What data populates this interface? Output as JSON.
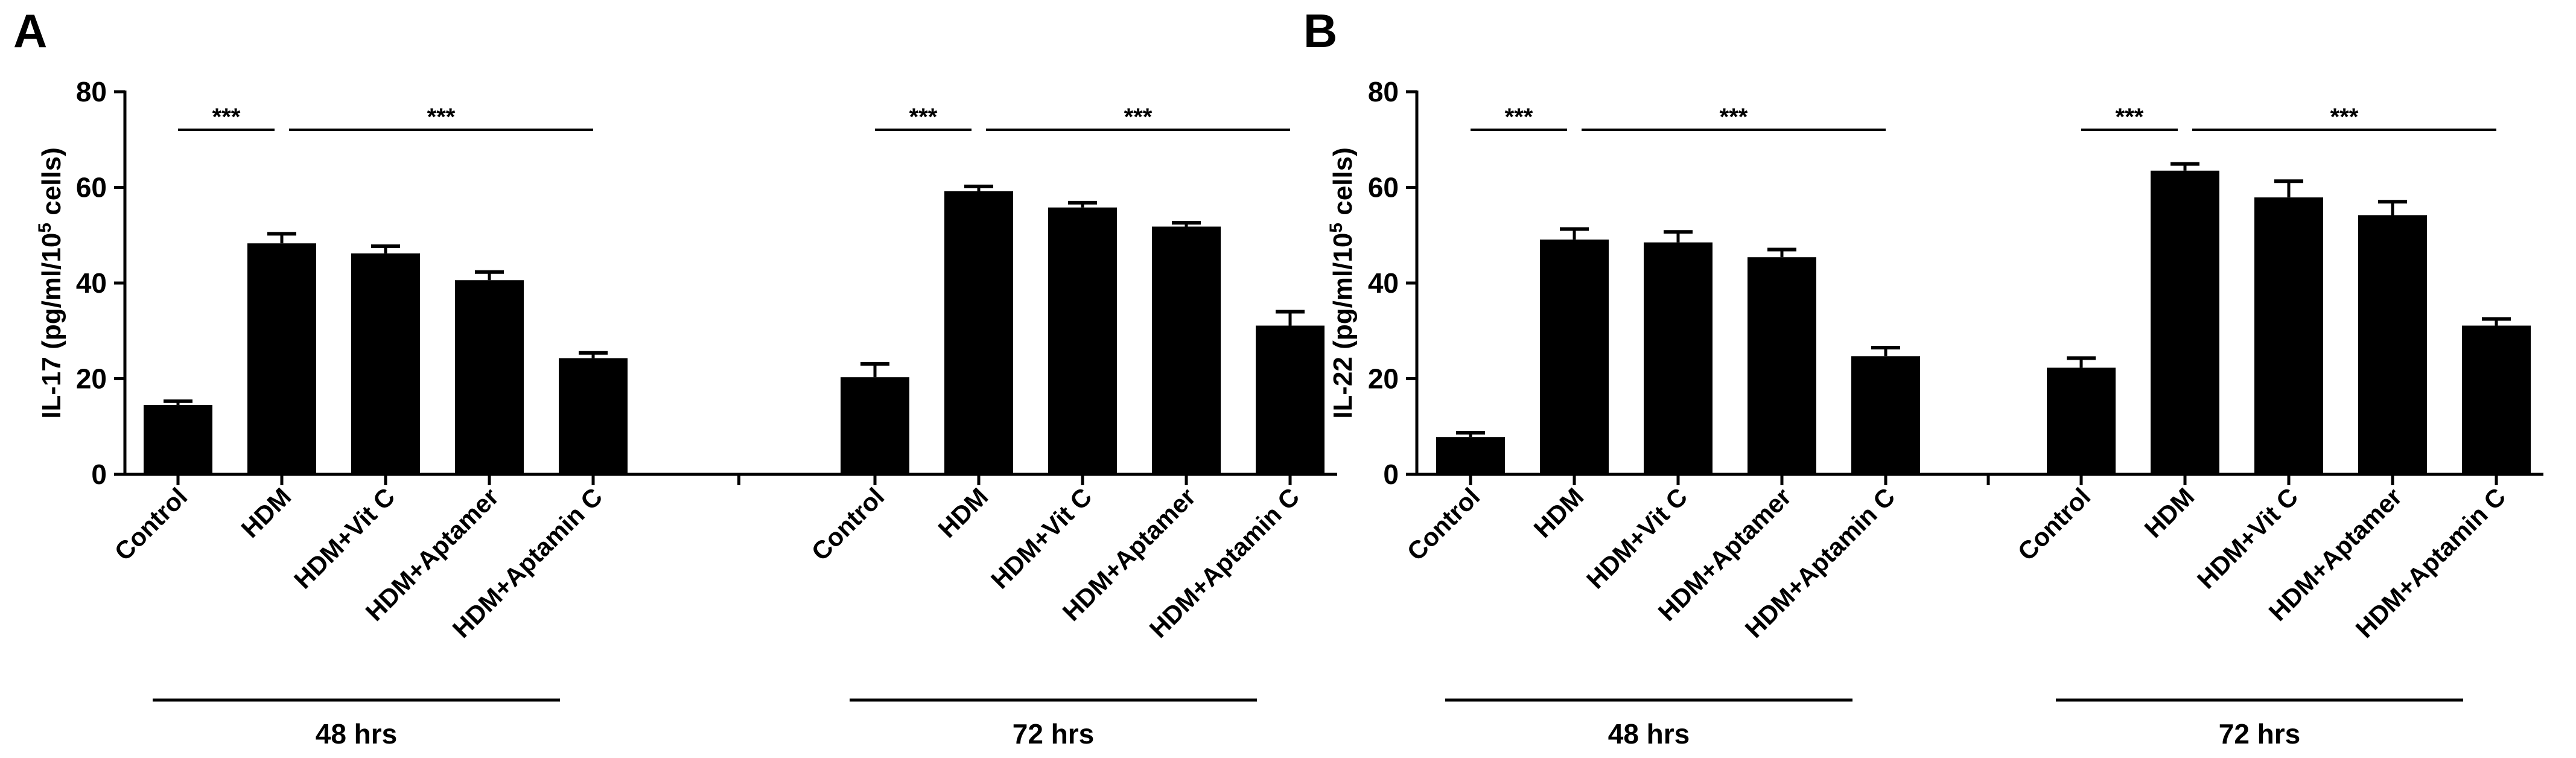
{
  "colors": {
    "bar": "#000000",
    "axis": "#000000",
    "background": "#ffffff"
  },
  "chart_data": [
    {
      "type": "bar",
      "panel": "A",
      "title": "",
      "ylabel": "IL-17 (pg/ml/10",
      "ylabel_sup": "5",
      "ylabel_suffix": " cells)",
      "ylim": [
        0,
        80
      ],
      "yticks": [
        "0",
        "20",
        "40",
        "60",
        "80"
      ],
      "grid": false,
      "groups": [
        {
          "label": "48 hrs",
          "categories": [
            "Control",
            "HDM",
            "HDM+Vit C",
            "HDM+Aptamer",
            "HDM+Aptamin C"
          ],
          "values": [
            14.5,
            48.3,
            46.2,
            40.6,
            24.3
          ],
          "errors": [
            0.8,
            2.0,
            1.5,
            1.7,
            1.1
          ],
          "significance": [
            {
              "from": 0,
              "to": 1,
              "label": "***"
            },
            {
              "from": 1,
              "to": 4,
              "label": "***"
            }
          ]
        },
        {
          "label": "72 hrs",
          "categories": [
            "Control",
            "HDM",
            "HDM+Vit C",
            "HDM+Aptamer",
            "HDM+Aptamin C"
          ],
          "values": [
            20.3,
            59.2,
            55.8,
            51.8,
            31.1
          ],
          "errors": [
            2.8,
            1.0,
            1.0,
            0.8,
            2.9
          ],
          "significance": [
            {
              "from": 0,
              "to": 1,
              "label": "***"
            },
            {
              "from": 1,
              "to": 4,
              "label": "***"
            }
          ]
        }
      ]
    },
    {
      "type": "bar",
      "panel": "B",
      "title": "",
      "ylabel": "IL-22 (pg/ml/10",
      "ylabel_sup": "5",
      "ylabel_suffix": " cells)",
      "ylim": [
        0,
        80
      ],
      "yticks": [
        "0",
        "20",
        "40",
        "60",
        "80"
      ],
      "grid": false,
      "groups": [
        {
          "label": "48 hrs",
          "categories": [
            "Control",
            "HDM",
            "HDM+Vit C",
            "HDM+Aptamer",
            "HDM+Aptamin C"
          ],
          "values": [
            7.8,
            49.1,
            48.5,
            45.4,
            24.7
          ],
          "errors": [
            0.9,
            2.2,
            2.2,
            1.6,
            1.8
          ],
          "significance": [
            {
              "from": 0,
              "to": 1,
              "label": "***"
            },
            {
              "from": 1,
              "to": 4,
              "label": "***"
            }
          ]
        },
        {
          "label": "72 hrs",
          "categories": [
            "Control",
            "HDM",
            "HDM+Vit C",
            "HDM+Aptamer",
            "HDM+Aptamin C"
          ],
          "values": [
            22.3,
            63.5,
            57.9,
            54.2,
            31.1
          ],
          "errors": [
            2.0,
            1.4,
            3.4,
            2.8,
            1.4
          ],
          "significance": [
            {
              "from": 0,
              "to": 1,
              "label": "***"
            },
            {
              "from": 1,
              "to": 4,
              "label": "***"
            }
          ]
        }
      ]
    }
  ]
}
